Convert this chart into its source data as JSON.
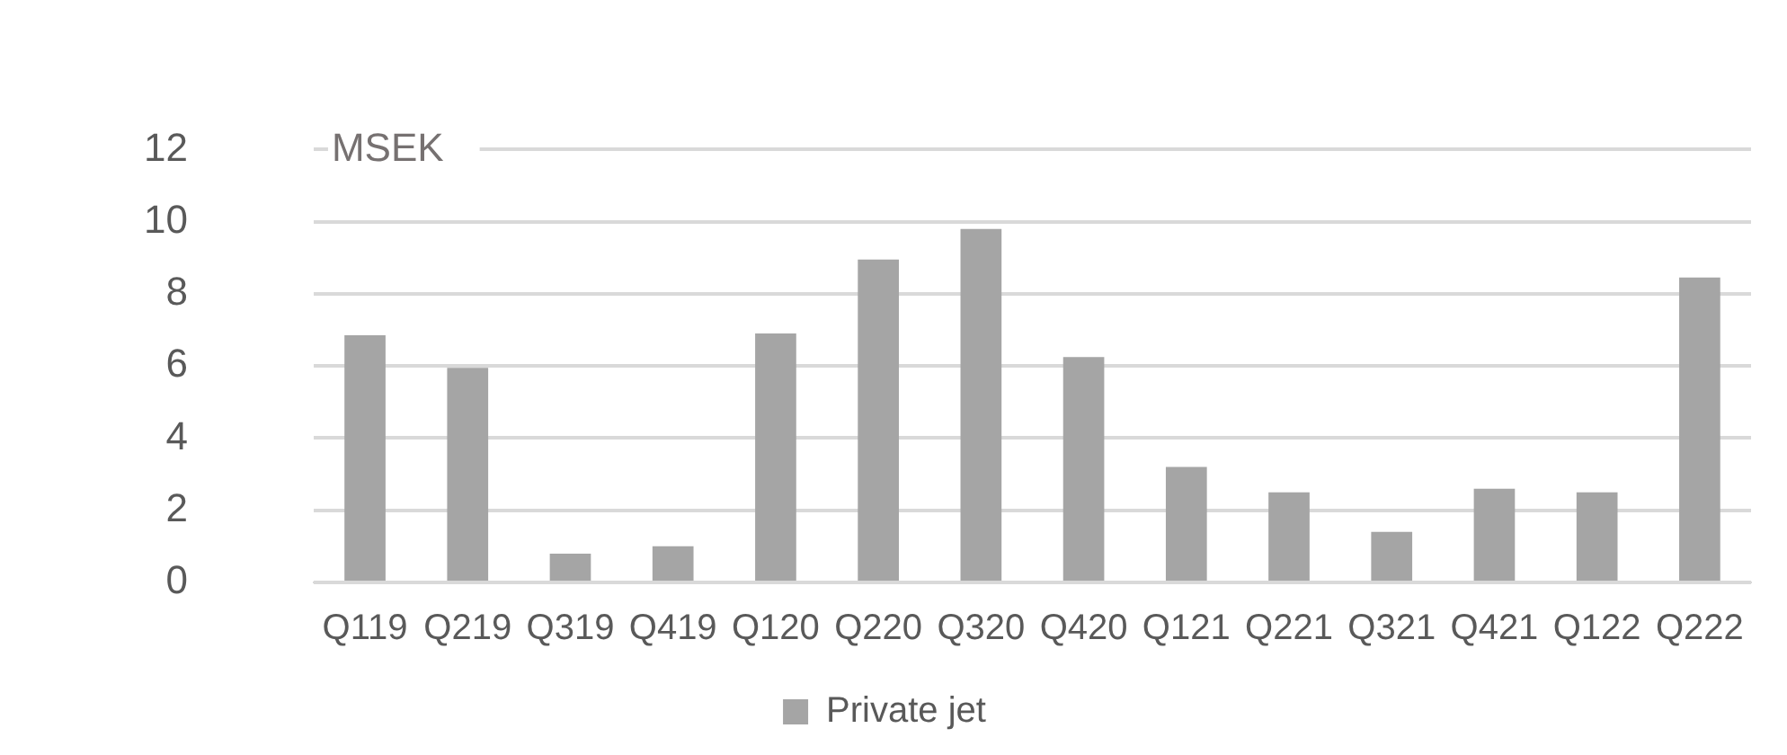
{
  "chart_data": {
    "type": "bar",
    "ylabel": "MSEK",
    "categories": [
      "Q119",
      "Q219",
      "Q319",
      "Q419",
      "Q120",
      "Q220",
      "Q320",
      "Q420",
      "Q121",
      "Q221",
      "Q321",
      "Q421",
      "Q122",
      "Q222"
    ],
    "series": [
      {
        "name": "Private jet",
        "color": "#a5a5a5",
        "values": [
          6.85,
          5.95,
          0.8,
          1.0,
          6.9,
          8.95,
          9.8,
          6.25,
          3.2,
          2.5,
          1.4,
          2.6,
          2.5,
          8.45
        ]
      }
    ],
    "ylim": [
      0,
      12
    ],
    "yticks": [
      0,
      2,
      4,
      6,
      8,
      10,
      12
    ],
    "grid": "y",
    "legend": "bottom"
  }
}
